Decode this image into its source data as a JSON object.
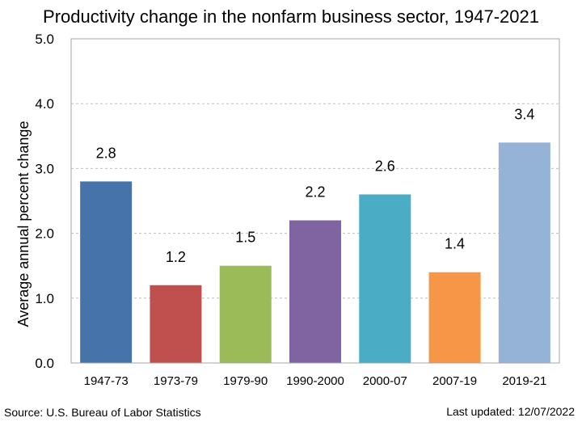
{
  "chart_data": {
    "type": "bar",
    "title": "Productivity change in the nonfarm business sector,  1947-2021",
    "ylabel": "Average annual percent change",
    "xlabel": "",
    "categories": [
      "1947-73",
      "1973-79",
      "1979-90",
      "1990-2000",
      "2000-07",
      "2007-19",
      "2019-21"
    ],
    "values": [
      2.8,
      1.2,
      1.5,
      2.2,
      2.6,
      1.4,
      3.4
    ],
    "value_labels": [
      "2.8",
      "1.2",
      "1.5",
      "2.2",
      "2.6",
      "1.4",
      "3.4"
    ],
    "colors": [
      "#4674AA",
      "#C0504D",
      "#9BBB59",
      "#8064A2",
      "#4BACC6",
      "#F79646",
      "#95B3D7"
    ],
    "ylim": [
      0,
      5
    ],
    "yticks": [
      0,
      1,
      2,
      3,
      4,
      5
    ],
    "ytick_labels": [
      "0.0",
      "1.0",
      "2.0",
      "3.0",
      "4.0",
      "5.0"
    ],
    "grid": true,
    "gridline_color": "#BFBFBF"
  },
  "footer": {
    "source": "Source: U.S. Bureau of Labor Statistics",
    "updated": "Last updated: 12/07/2022"
  }
}
